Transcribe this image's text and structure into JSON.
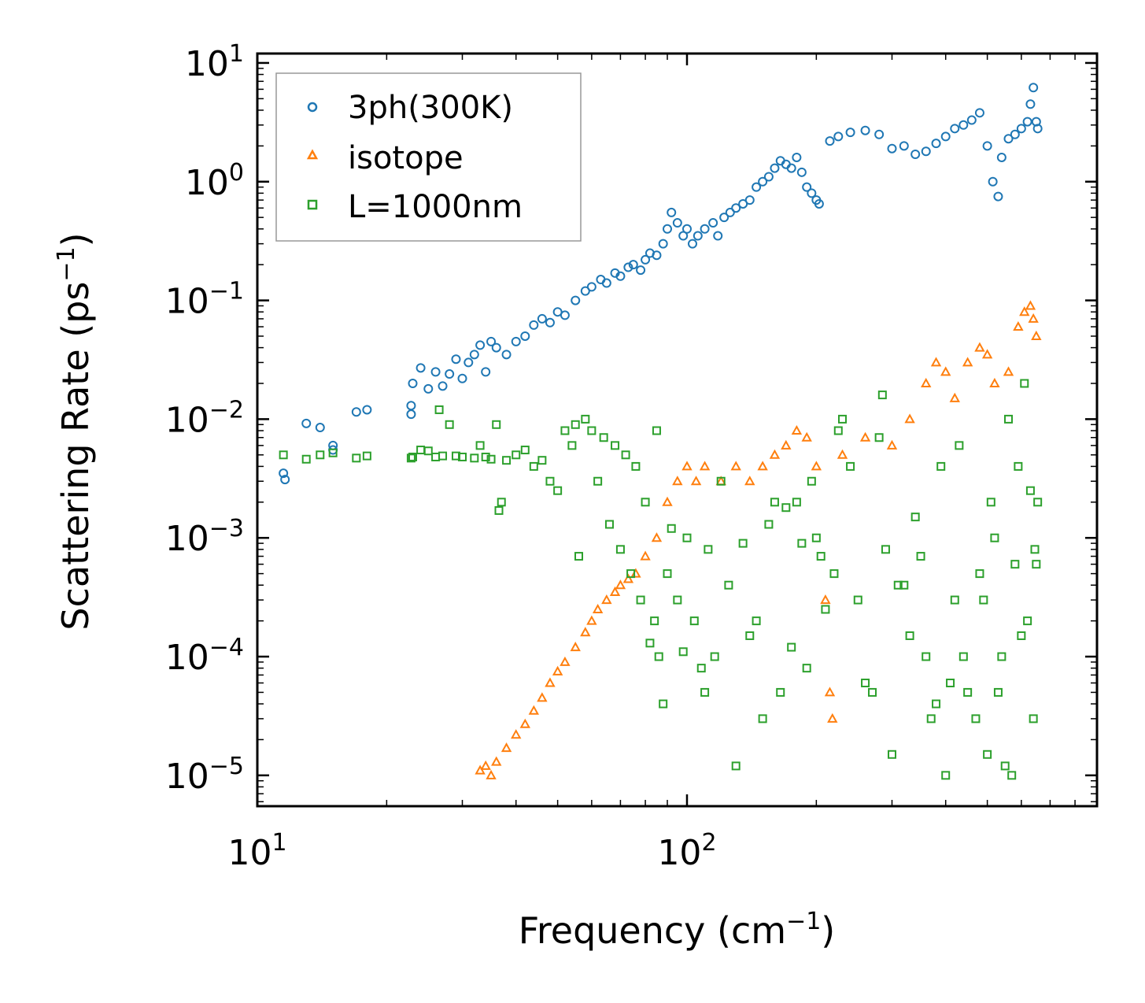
{
  "chart_data": {
    "type": "scatter",
    "title": "",
    "xlabel": "Frequency (cm",
    "xlabel_sup": "−1",
    "xlabel_end": ")",
    "ylabel": "Scattering Rate (ps",
    "ylabel_sup": "−1",
    "ylabel_end": ")",
    "xscale": "log",
    "yscale": "log",
    "xlim": [
      10,
      900
    ],
    "ylim": [
      5.5e-06,
      12
    ],
    "xticks": [
      {
        "value": 10,
        "base": "10",
        "exp": "1"
      },
      {
        "value": 100,
        "base": "10",
        "exp": "2"
      }
    ],
    "yticks": [
      {
        "value": 10,
        "base": "10",
        "exp": "1"
      },
      {
        "value": 1,
        "base": "10",
        "exp": "0"
      },
      {
        "value": 0.1,
        "base": "10",
        "exp": "−1"
      },
      {
        "value": 0.01,
        "base": "10",
        "exp": "−2"
      },
      {
        "value": 0.001,
        "base": "10",
        "exp": "−3"
      },
      {
        "value": 0.0001,
        "base": "10",
        "exp": "−4"
      },
      {
        "value": 1e-05,
        "base": "10",
        "exp": "−5"
      }
    ],
    "legend_position": "top-left",
    "series": [
      {
        "name": "3ph(300K)",
        "marker": "circle",
        "color": "#1f77b4",
        "points": [
          [
            11.5,
            0.0035
          ],
          [
            11.6,
            0.0031
          ],
          [
            13,
            0.0092
          ],
          [
            14,
            0.0085
          ],
          [
            15,
            0.0055
          ],
          [
            15,
            0.006
          ],
          [
            17,
            0.0115
          ],
          [
            18,
            0.012
          ],
          [
            22.8,
            0.013
          ],
          [
            22.8,
            0.011
          ],
          [
            23,
            0.02
          ],
          [
            24,
            0.027
          ],
          [
            25,
            0.018
          ],
          [
            26,
            0.025
          ],
          [
            27,
            0.019
          ],
          [
            28,
            0.024
          ],
          [
            29,
            0.032
          ],
          [
            30,
            0.022
          ],
          [
            31,
            0.03
          ],
          [
            32,
            0.035
          ],
          [
            33,
            0.042
          ],
          [
            34,
            0.025
          ],
          [
            35,
            0.045
          ],
          [
            36,
            0.04
          ],
          [
            38,
            0.035
          ],
          [
            40,
            0.045
          ],
          [
            42,
            0.05
          ],
          [
            44,
            0.062
          ],
          [
            46,
            0.07
          ],
          [
            48,
            0.065
          ],
          [
            50,
            0.08
          ],
          [
            52,
            0.075
          ],
          [
            55,
            0.1
          ],
          [
            58,
            0.12
          ],
          [
            60,
            0.13
          ],
          [
            63,
            0.15
          ],
          [
            65,
            0.14
          ],
          [
            68,
            0.17
          ],
          [
            70,
            0.16
          ],
          [
            73,
            0.19
          ],
          [
            75,
            0.2
          ],
          [
            78,
            0.18
          ],
          [
            80,
            0.22
          ],
          [
            82,
            0.25
          ],
          [
            85,
            0.24
          ],
          [
            88,
            0.3
          ],
          [
            90,
            0.4
          ],
          [
            92,
            0.55
          ],
          [
            95,
            0.45
          ],
          [
            98,
            0.35
          ],
          [
            100,
            0.4
          ],
          [
            103,
            0.3
          ],
          [
            106,
            0.35
          ],
          [
            110,
            0.4
          ],
          [
            115,
            0.45
          ],
          [
            118,
            0.35
          ],
          [
            122,
            0.5
          ],
          [
            126,
            0.55
          ],
          [
            130,
            0.6
          ],
          [
            135,
            0.65
          ],
          [
            140,
            0.7
          ],
          [
            145,
            0.9
          ],
          [
            150,
            1.0
          ],
          [
            155,
            1.1
          ],
          [
            160,
            1.3
          ],
          [
            165,
            1.5
          ],
          [
            170,
            1.4
          ],
          [
            175,
            1.3
          ],
          [
            180,
            1.6
          ],
          [
            185,
            1.2
          ],
          [
            190,
            0.9
          ],
          [
            195,
            0.8
          ],
          [
            200,
            0.7
          ],
          [
            203,
            0.65
          ],
          [
            215,
            2.2
          ],
          [
            225,
            2.4
          ],
          [
            240,
            2.6
          ],
          [
            260,
            2.7
          ],
          [
            280,
            2.5
          ],
          [
            300,
            1.9
          ],
          [
            320,
            2.0
          ],
          [
            340,
            1.7
          ],
          [
            360,
            1.8
          ],
          [
            380,
            2.1
          ],
          [
            400,
            2.4
          ],
          [
            420,
            2.8
          ],
          [
            440,
            3.0
          ],
          [
            460,
            3.3
          ],
          [
            480,
            3.8
          ],
          [
            500,
            2.0
          ],
          [
            515,
            1.0
          ],
          [
            530,
            0.75
          ],
          [
            540,
            1.6
          ],
          [
            560,
            2.3
          ],
          [
            580,
            2.5
          ],
          [
            600,
            2.8
          ],
          [
            620,
            3.2
          ],
          [
            630,
            4.5
          ],
          [
            640,
            6.2
          ],
          [
            650,
            3.2
          ],
          [
            655,
            2.8
          ]
        ]
      },
      {
        "name": "isotope",
        "marker": "triangle",
        "color": "#ff7f0e",
        "points": [
          [
            33,
            1.1e-05
          ],
          [
            34,
            1.2e-05
          ],
          [
            35,
            1e-05
          ],
          [
            36,
            1.3e-05
          ],
          [
            38,
            1.7e-05
          ],
          [
            40,
            2.2e-05
          ],
          [
            42,
            2.7e-05
          ],
          [
            44,
            3.5e-05
          ],
          [
            46,
            4.5e-05
          ],
          [
            48,
            6e-05
          ],
          [
            50,
            7.5e-05
          ],
          [
            52,
            9e-05
          ],
          [
            55,
            0.00012
          ],
          [
            58,
            0.00016
          ],
          [
            60,
            0.0002
          ],
          [
            62,
            0.00025
          ],
          [
            65,
            0.0003
          ],
          [
            68,
            0.00035
          ],
          [
            70,
            0.0004
          ],
          [
            73,
            0.00045
          ],
          [
            76,
            0.0005
          ],
          [
            80,
            0.0007
          ],
          [
            85,
            0.001
          ],
          [
            90,
            0.002
          ],
          [
            95,
            0.003
          ],
          [
            100,
            0.004
          ],
          [
            105,
            0.003
          ],
          [
            110,
            0.004
          ],
          [
            120,
            0.003
          ],
          [
            130,
            0.004
          ],
          [
            140,
            0.003
          ],
          [
            150,
            0.004
          ],
          [
            160,
            0.005
          ],
          [
            170,
            0.006
          ],
          [
            180,
            0.008
          ],
          [
            190,
            0.007
          ],
          [
            200,
            0.004
          ],
          [
            210,
            0.0003
          ],
          [
            215,
            5e-05
          ],
          [
            218,
            3e-05
          ],
          [
            230,
            0.005
          ],
          [
            260,
            0.007
          ],
          [
            300,
            0.006
          ],
          [
            330,
            0.01
          ],
          [
            360,
            0.02
          ],
          [
            380,
            0.03
          ],
          [
            400,
            0.025
          ],
          [
            420,
            0.015
          ],
          [
            450,
            0.03
          ],
          [
            480,
            0.04
          ],
          [
            500,
            0.035
          ],
          [
            520,
            0.02
          ],
          [
            560,
            0.025
          ],
          [
            590,
            0.06
          ],
          [
            610,
            0.08
          ],
          [
            630,
            0.09
          ],
          [
            640,
            0.07
          ],
          [
            650,
            0.05
          ]
        ]
      },
      {
        "name": "L=1000nm",
        "marker": "square",
        "color": "#2ca02c",
        "points": [
          [
            11.5,
            0.005
          ],
          [
            13,
            0.0046
          ],
          [
            14,
            0.005
          ],
          [
            15,
            0.0052
          ],
          [
            17,
            0.0047
          ],
          [
            18,
            0.0049
          ],
          [
            22.8,
            0.0047
          ],
          [
            23,
            0.0048
          ],
          [
            24,
            0.0055
          ],
          [
            25,
            0.0054
          ],
          [
            26,
            0.0048
          ],
          [
            26.5,
            0.012
          ],
          [
            27,
            0.0049
          ],
          [
            28,
            0.009
          ],
          [
            29,
            0.0049
          ],
          [
            30,
            0.0048
          ],
          [
            32,
            0.0047
          ],
          [
            33,
            0.006
          ],
          [
            34,
            0.0048
          ],
          [
            35,
            0.0046
          ],
          [
            36,
            0.009
          ],
          [
            36.5,
            0.0017
          ],
          [
            37,
            0.002
          ],
          [
            38,
            0.0045
          ],
          [
            40,
            0.005
          ],
          [
            42,
            0.0055
          ],
          [
            44,
            0.004
          ],
          [
            46,
            0.0045
          ],
          [
            48,
            0.003
          ],
          [
            50,
            0.0025
          ],
          [
            52,
            0.008
          ],
          [
            54,
            0.006
          ],
          [
            55,
            0.009
          ],
          [
            56,
            0.0007
          ],
          [
            58,
            0.01
          ],
          [
            60,
            0.008
          ],
          [
            62,
            0.003
          ],
          [
            64,
            0.007
          ],
          [
            66,
            0.0013
          ],
          [
            68,
            0.006
          ],
          [
            70,
            0.0008
          ],
          [
            72,
            0.005
          ],
          [
            74,
            0.0005
          ],
          [
            76,
            0.004
          ],
          [
            78,
            0.0003
          ],
          [
            80,
            0.002
          ],
          [
            82,
            0.00013
          ],
          [
            84,
            0.0002
          ],
          [
            85,
            0.008
          ],
          [
            86,
            0.0001
          ],
          [
            88,
            4e-05
          ],
          [
            90,
            0.0005
          ],
          [
            92,
            0.0012
          ],
          [
            95,
            0.0003
          ],
          [
            98,
            0.00011
          ],
          [
            100,
            0.001
          ],
          [
            104,
            0.0002
          ],
          [
            108,
            8e-05
          ],
          [
            110,
            5e-05
          ],
          [
            112,
            0.0008
          ],
          [
            116,
            0.0001
          ],
          [
            120,
            0.003
          ],
          [
            125,
            0.0004
          ],
          [
            130,
            1.2e-05
          ],
          [
            135,
            0.0009
          ],
          [
            140,
            0.00015
          ],
          [
            145,
            0.0002
          ],
          [
            150,
            3e-05
          ],
          [
            155,
            0.0013
          ],
          [
            160,
            0.002
          ],
          [
            165,
            5e-05
          ],
          [
            170,
            0.0018
          ],
          [
            175,
            0.00012
          ],
          [
            180,
            0.002
          ],
          [
            185,
            0.0009
          ],
          [
            190,
            8e-05
          ],
          [
            195,
            0.003
          ],
          [
            200,
            0.001
          ],
          [
            205,
            0.0007
          ],
          [
            210,
            0.00025
          ],
          [
            220,
            0.0005
          ],
          [
            225,
            0.008
          ],
          [
            230,
            0.01
          ],
          [
            240,
            0.004
          ],
          [
            250,
            0.0003
          ],
          [
            260,
            6e-05
          ],
          [
            270,
            5e-05
          ],
          [
            280,
            0.007
          ],
          [
            285,
            0.016
          ],
          [
            290,
            0.0008
          ],
          [
            300,
            1.5e-05
          ],
          [
            310,
            0.0004
          ],
          [
            320,
            0.0004
          ],
          [
            330,
            0.00015
          ],
          [
            340,
            0.0015
          ],
          [
            350,
            0.0007
          ],
          [
            360,
            0.0001
          ],
          [
            370,
            3e-05
          ],
          [
            380,
            4e-05
          ],
          [
            390,
            0.004
          ],
          [
            400,
            1e-05
          ],
          [
            410,
            6e-05
          ],
          [
            420,
            0.0003
          ],
          [
            430,
            0.006
          ],
          [
            440,
            0.0001
          ],
          [
            450,
            5e-05
          ],
          [
            470,
            3e-05
          ],
          [
            480,
            0.0005
          ],
          [
            490,
            0.0003
          ],
          [
            500,
            1.5e-05
          ],
          [
            510,
            0.002
          ],
          [
            520,
            0.001
          ],
          [
            530,
            5e-05
          ],
          [
            540,
            0.0001
          ],
          [
            550,
            1.2e-05
          ],
          [
            560,
            0.01
          ],
          [
            570,
            1e-05
          ],
          [
            580,
            0.0006
          ],
          [
            590,
            0.004
          ],
          [
            600,
            0.00015
          ],
          [
            610,
            0.02
          ],
          [
            620,
            0.0002
          ],
          [
            630,
            0.0025
          ],
          [
            640,
            3e-05
          ],
          [
            645,
            0.0008
          ],
          [
            650,
            0.0006
          ],
          [
            655,
            0.002
          ]
        ]
      }
    ]
  }
}
